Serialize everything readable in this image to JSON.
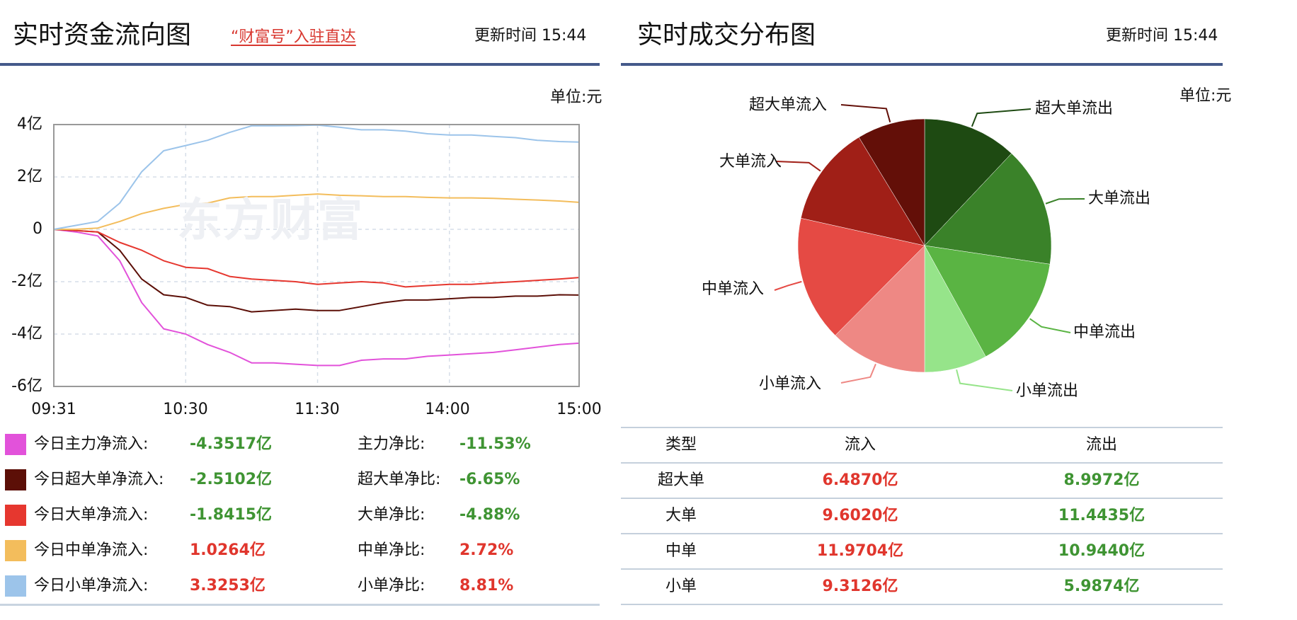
{
  "left_panel": {
    "title": "实时资金流向图",
    "link_label": "“财富号”入驻直达",
    "update_time": "更新时间 15:44",
    "unit": "单位:元",
    "watermark": "东方财富",
    "legend": [
      {
        "label": "今日主力净流入:",
        "value": "-4.3517亿",
        "color": "#e252da",
        "sign": "neg"
      },
      {
        "label": "今日超大单净流入:",
        "value": "-2.5102亿",
        "color": "#5c0f07",
        "sign": "neg"
      },
      {
        "label": "今日大单净流入:",
        "value": "-1.8415亿",
        "color": "#e6372f",
        "sign": "neg"
      },
      {
        "label": "今日中单净流入:",
        "value": "1.0264亿",
        "color": "#f3bd5c",
        "sign": "pos"
      },
      {
        "label": "今日小单净流入:",
        "value": "3.3253亿",
        "color": "#9cc4ea",
        "sign": "pos"
      }
    ],
    "ratios": [
      {
        "label": "主力净比:",
        "value": "-11.53%",
        "sign": "neg"
      },
      {
        "label": "超大单净比:",
        "value": "-6.65%",
        "sign": "neg"
      },
      {
        "label": "大单净比:",
        "value": "-4.88%",
        "sign": "neg"
      },
      {
        "label": "中单净比:",
        "value": "2.72%",
        "sign": "pos"
      },
      {
        "label": "小单净比:",
        "value": "8.81%",
        "sign": "pos"
      }
    ]
  },
  "right_panel": {
    "title": "实时成交分布图",
    "update_time": "更新时间 15:44",
    "unit": "单位:元",
    "table": {
      "headers": [
        "类型",
        "流入",
        "流出"
      ],
      "rows": [
        {
          "type": "超大单",
          "inflow": "6.4870亿",
          "outflow": "8.9972亿"
        },
        {
          "type": "大单",
          "inflow": "9.6020亿",
          "outflow": "11.4435亿"
        },
        {
          "type": "中单",
          "inflow": "11.9704亿",
          "outflow": "10.9440亿"
        },
        {
          "type": "小单",
          "inflow": "9.3126亿",
          "outflow": "5.9874亿"
        }
      ]
    }
  },
  "colors": {
    "header_rule": "#44598a",
    "negative": "#3f9433",
    "positive": "#e0362d",
    "link": "#d8372f"
  },
  "chart_data": [
    {
      "type": "line",
      "title": "实时资金流向图",
      "xlabel": "",
      "ylabel": "",
      "unit": "单位:元",
      "x_ticks": [
        "09:31",
        "10:30",
        "11:30",
        "14:00",
        "15:00"
      ],
      "y_ticks": [
        "4亿",
        "2亿",
        "0",
        "-2亿",
        "-4亿",
        "-6亿"
      ],
      "ylim": [
        -6,
        4
      ],
      "grid": true,
      "x_minutes": [
        0,
        10,
        20,
        30,
        40,
        50,
        60,
        70,
        80,
        90,
        100,
        110,
        120,
        130,
        140,
        150,
        160,
        170,
        180,
        190,
        200,
        210,
        220,
        230,
        239
      ],
      "series": [
        {
          "name": "今日主力净流入",
          "color": "#e252da",
          "values": [
            0,
            -0.1,
            -0.25,
            -1.2,
            -2.8,
            -3.8,
            -4.0,
            -4.4,
            -4.7,
            -5.1,
            -5.1,
            -5.15,
            -5.2,
            -5.2,
            -5.0,
            -4.95,
            -4.95,
            -4.85,
            -4.8,
            -4.75,
            -4.7,
            -4.6,
            -4.5,
            -4.4,
            -4.35
          ]
        },
        {
          "name": "今日超大单净流入",
          "color": "#5c0f07",
          "values": [
            0,
            -0.05,
            -0.1,
            -0.8,
            -1.9,
            -2.5,
            -2.6,
            -2.9,
            -2.95,
            -3.15,
            -3.1,
            -3.05,
            -3.1,
            -3.1,
            -2.95,
            -2.8,
            -2.7,
            -2.7,
            -2.65,
            -2.6,
            -2.6,
            -2.55,
            -2.55,
            -2.5,
            -2.51
          ]
        },
        {
          "name": "今日大单净流入",
          "color": "#e6372f",
          "values": [
            0,
            -0.05,
            -0.1,
            -0.5,
            -0.8,
            -1.2,
            -1.45,
            -1.5,
            -1.8,
            -1.9,
            -1.95,
            -2.0,
            -2.1,
            -2.05,
            -2.0,
            -2.05,
            -2.2,
            -2.15,
            -2.1,
            -2.1,
            -2.05,
            -2.0,
            -1.95,
            -1.9,
            -1.84
          ]
        },
        {
          "name": "今日中单净流入",
          "color": "#f3bd5c",
          "values": [
            0,
            0.0,
            0.05,
            0.3,
            0.6,
            0.8,
            0.95,
            1.0,
            1.2,
            1.25,
            1.25,
            1.3,
            1.35,
            1.3,
            1.28,
            1.25,
            1.25,
            1.22,
            1.2,
            1.2,
            1.18,
            1.15,
            1.12,
            1.08,
            1.03
          ]
        },
        {
          "name": "今日小单净流入",
          "color": "#9cc4ea",
          "values": [
            0,
            0.15,
            0.3,
            1.0,
            2.2,
            3.0,
            3.2,
            3.4,
            3.7,
            3.95,
            3.95,
            3.96,
            3.98,
            3.9,
            3.8,
            3.8,
            3.75,
            3.65,
            3.6,
            3.6,
            3.55,
            3.5,
            3.4,
            3.35,
            3.33
          ]
        }
      ]
    },
    {
      "type": "pie",
      "title": "实时成交分布图",
      "unit": "单位:元",
      "slices": [
        {
          "label": "超大单流出",
          "value": 8.9972,
          "color": "#1e4a12"
        },
        {
          "label": "大单流出",
          "value": 11.4435,
          "color": "#3a8229"
        },
        {
          "label": "中单流出",
          "value": 10.944,
          "color": "#5ab443"
        },
        {
          "label": "小单流出",
          "value": 5.9874,
          "color": "#96e48a"
        },
        {
          "label": "小单流入",
          "value": 9.3126,
          "color": "#ee8884"
        },
        {
          "label": "中单流入",
          "value": 11.9704,
          "color": "#e54a44"
        },
        {
          "label": "大单流入",
          "value": 9.602,
          "color": "#a01f17"
        },
        {
          "label": "超大单流入",
          "value": 6.487,
          "color": "#630f08"
        }
      ]
    }
  ]
}
